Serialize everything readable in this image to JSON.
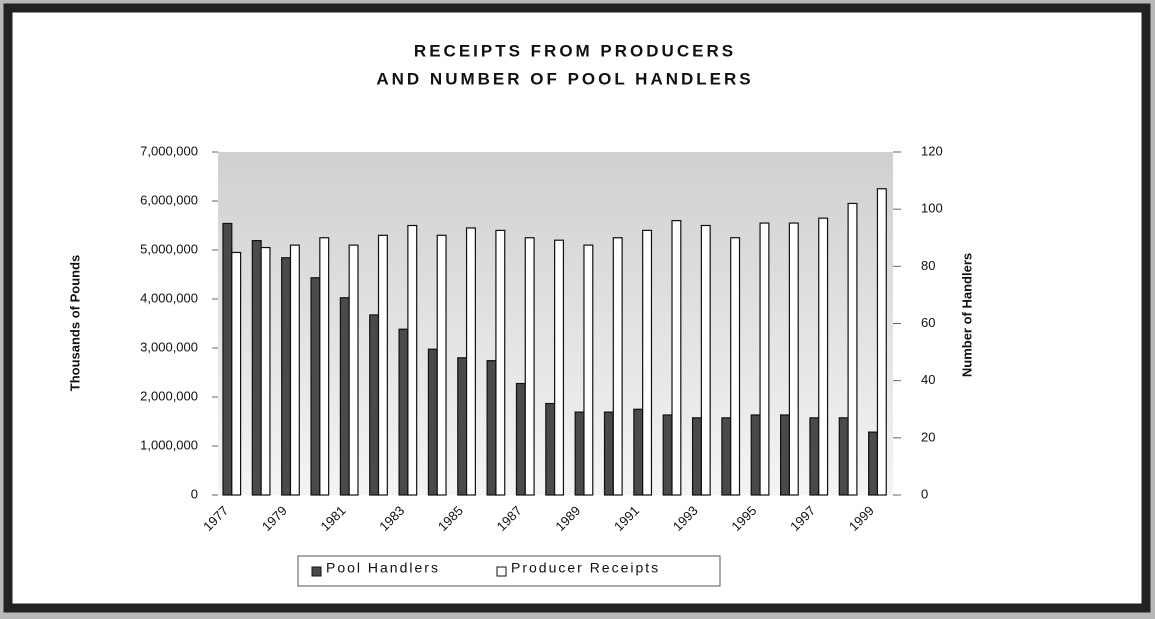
{
  "chart_data": {
    "type": "bar",
    "title": [
      "RECEIPTS FROM PRODUCERS",
      "AND NUMBER OF POOL HANDLERS"
    ],
    "y_label": "Thousands of Pounds",
    "y2_label": "Number of Handlers",
    "categories": [
      "1977",
      null,
      "1979",
      null,
      "1981",
      null,
      "1983",
      null,
      "1985",
      null,
      "1987",
      null,
      "1989",
      null,
      "1991",
      null,
      "1993",
      null,
      "1995",
      null,
      "1997",
      null,
      "1999"
    ],
    "series": [
      {
        "name": "Pool Handlers",
        "color": "#4a4a4a",
        "axis": "y2",
        "values": [
          95,
          89,
          83,
          76,
          69,
          63,
          58,
          51,
          48,
          47,
          39,
          32,
          29,
          29,
          30,
          28,
          27,
          27,
          28,
          28,
          27,
          27,
          22
        ]
      },
      {
        "name": "Producer Receipts",
        "color": "#ffffff",
        "values": [
          4950000,
          5050000,
          5100000,
          5250000,
          5100000,
          5300000,
          5500000,
          5300000,
          5450000,
          5400000,
          5250000,
          5200000,
          5100000,
          5250000,
          5400000,
          5600000,
          5500000,
          5250000,
          5550000,
          5550000,
          5650000,
          5950000,
          6250000
        ]
      }
    ],
    "ylim": [
      0,
      7000000
    ],
    "yticks": [
      0,
      {
        "value": 1000000,
        "label": "1,000,000"
      },
      {
        "value": 2000000,
        "label": "2,000,000"
      },
      {
        "value": 3000000,
        "label": "3,000,000"
      },
      {
        "value": 4000000,
        "label": "4,000,000"
      },
      {
        "value": 5000000,
        "label": "5,000,000"
      },
      {
        "value": 6000000,
        "label": "6,000,000"
      },
      {
        "value": 7000000,
        "label": "7,000,000"
      }
    ],
    "y2lim": [
      0,
      120
    ],
    "y2ticks": [
      0,
      20,
      40,
      60,
      80,
      100,
      120
    ]
  }
}
